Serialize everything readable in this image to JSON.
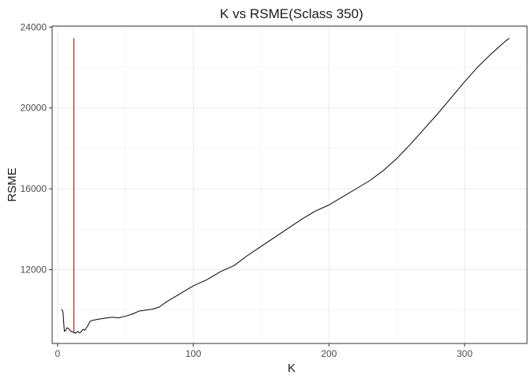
{
  "chart_data": {
    "type": "line",
    "title": "K vs RSME(Sclass 350)",
    "xlabel": "K",
    "ylabel": "RSME",
    "xlim": [
      -4,
      346
    ],
    "ylim": [
      8350,
      24050
    ],
    "x_ticks": [
      0,
      100,
      200,
      300
    ],
    "x_tick_labels": [
      "0",
      "100",
      "200",
      "300"
    ],
    "y_ticks": [
      12000,
      16000,
      20000,
      24000
    ],
    "y_tick_labels": [
      "12000",
      "16000",
      "20000",
      "24000"
    ],
    "grid": true,
    "series": [
      {
        "color": "#000000",
        "x": [
          3,
          4,
          5,
          6,
          7,
          8,
          9,
          10,
          11,
          12,
          13,
          14,
          15,
          16,
          17,
          18,
          19,
          20,
          22,
          24,
          26,
          28,
          30,
          35,
          40,
          45,
          50,
          55,
          60,
          65,
          70,
          75,
          80,
          85,
          90,
          95,
          100,
          110,
          120,
          130,
          140,
          150,
          160,
          170,
          180,
          190,
          200,
          210,
          220,
          230,
          240,
          250,
          260,
          270,
          280,
          290,
          300,
          310,
          320,
          330,
          333
        ],
        "y": [
          10050,
          9900,
          8950,
          9000,
          9120,
          9100,
          9000,
          8950,
          8920,
          8900,
          8850,
          8900,
          8950,
          8870,
          8900,
          9000,
          9050,
          9000,
          9200,
          9450,
          9500,
          9520,
          9550,
          9600,
          9650,
          9620,
          9700,
          9800,
          9950,
          10000,
          10050,
          10150,
          10400,
          10600,
          10800,
          11000,
          11200,
          11500,
          11900,
          12200,
          12700,
          13150,
          13600,
          14050,
          14500,
          14900,
          15200,
          15600,
          16000,
          16400,
          16900,
          17500,
          18200,
          18950,
          19700,
          20500,
          21300,
          22050,
          22700,
          23300,
          23450
        ]
      }
    ],
    "vline": {
      "x": 12,
      "y0": 8900,
      "y1": 23450,
      "color": "#b22222"
    }
  }
}
